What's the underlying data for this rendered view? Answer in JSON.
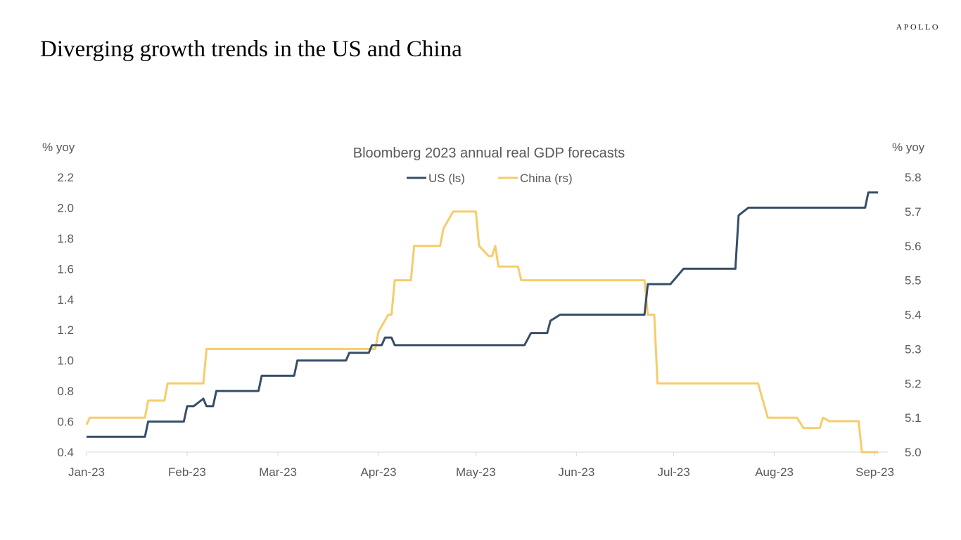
{
  "brand": "APOLLO",
  "page_title": "Diverging growth trends in the US and China",
  "colors": {
    "us": "#374e67",
    "china": "#f6cc6c",
    "axis": "#d9d9d9",
    "text": "#595959"
  },
  "chart_data": {
    "type": "line",
    "title": "Bloomberg 2023 annual real GDP forecasts",
    "ylabel_left": "% yoy",
    "ylabel_right": "% yoy",
    "legend_position": "top-center",
    "grid": false,
    "x_range": [
      "2023-01-01",
      "2023-09-05"
    ],
    "x_ticks": [
      "2023-01-01",
      "2023-02-01",
      "2023-03-01",
      "2023-04-01",
      "2023-05-01",
      "2023-06-01",
      "2023-07-01",
      "2023-08-01",
      "2023-09-01"
    ],
    "x_tick_labels": [
      "Jan-23",
      "Feb-23",
      "Mar-23",
      "Apr-23",
      "May-23",
      "Jun-23",
      "Jul-23",
      "Aug-23",
      "Sep-23"
    ],
    "y_left": {
      "min": 0.4,
      "max": 2.2,
      "ticks": [
        "0.4",
        "0.6",
        "0.8",
        "1.0",
        "1.2",
        "1.4",
        "1.6",
        "1.8",
        "2.0",
        "2.2"
      ]
    },
    "y_right": {
      "min": 5.0,
      "max": 5.8,
      "ticks": [
        "5.0",
        "5.1",
        "5.2",
        "5.3",
        "5.4",
        "5.5",
        "5.6",
        "5.7",
        "5.8"
      ]
    },
    "series": [
      {
        "name": "US (ls)",
        "axis": "left",
        "points": [
          [
            "2023-01-01",
            0.5
          ],
          [
            "2023-01-19",
            0.5
          ],
          [
            "2023-01-20",
            0.6
          ],
          [
            "2023-01-31",
            0.6
          ],
          [
            "2023-02-01",
            0.7
          ],
          [
            "2023-02-03",
            0.7
          ],
          [
            "2023-02-06",
            0.75
          ],
          [
            "2023-02-07",
            0.7
          ],
          [
            "2023-02-09",
            0.7
          ],
          [
            "2023-02-10",
            0.8
          ],
          [
            "2023-02-23",
            0.8
          ],
          [
            "2023-02-24",
            0.9
          ],
          [
            "2023-03-06",
            0.9
          ],
          [
            "2023-03-07",
            1.0
          ],
          [
            "2023-03-22",
            1.0
          ],
          [
            "2023-03-23",
            1.05
          ],
          [
            "2023-03-29",
            1.05
          ],
          [
            "2023-03-30",
            1.1
          ],
          [
            "2023-04-02",
            1.1
          ],
          [
            "2023-04-03",
            1.15
          ],
          [
            "2023-04-05",
            1.15
          ],
          [
            "2023-04-06",
            1.1
          ],
          [
            "2023-05-16",
            1.1
          ],
          [
            "2023-05-18",
            1.18
          ],
          [
            "2023-05-23",
            1.18
          ],
          [
            "2023-05-24",
            1.26
          ],
          [
            "2023-05-27",
            1.3
          ],
          [
            "2023-06-22",
            1.3
          ],
          [
            "2023-06-23",
            1.5
          ],
          [
            "2023-06-30",
            1.5
          ],
          [
            "2023-07-04",
            1.6
          ],
          [
            "2023-07-20",
            1.6
          ],
          [
            "2023-07-21",
            1.95
          ],
          [
            "2023-07-24",
            2.0
          ],
          [
            "2023-08-29",
            2.0
          ],
          [
            "2023-08-30",
            2.1
          ],
          [
            "2023-09-02",
            2.1
          ]
        ]
      },
      {
        "name": "China (rs)",
        "axis": "right",
        "points": [
          [
            "2023-01-01",
            5.08
          ],
          [
            "2023-01-02",
            5.1
          ],
          [
            "2023-01-19",
            5.1
          ],
          [
            "2023-01-20",
            5.15
          ],
          [
            "2023-01-25",
            5.15
          ],
          [
            "2023-01-26",
            5.2
          ],
          [
            "2023-02-06",
            5.2
          ],
          [
            "2023-02-07",
            5.3
          ],
          [
            "2023-03-31",
            5.3
          ],
          [
            "2023-04-01",
            5.35
          ],
          [
            "2023-04-04",
            5.4
          ],
          [
            "2023-04-05",
            5.4
          ],
          [
            "2023-04-06",
            5.5
          ],
          [
            "2023-04-11",
            5.5
          ],
          [
            "2023-04-12",
            5.6
          ],
          [
            "2023-04-20",
            5.6
          ],
          [
            "2023-04-21",
            5.65
          ],
          [
            "2023-04-24",
            5.7
          ],
          [
            "2023-05-01",
            5.7
          ],
          [
            "2023-05-02",
            5.6
          ],
          [
            "2023-05-04",
            5.58
          ],
          [
            "2023-05-05",
            5.57
          ],
          [
            "2023-05-06",
            5.57
          ],
          [
            "2023-05-07",
            5.6
          ],
          [
            "2023-05-08",
            5.54
          ],
          [
            "2023-05-14",
            5.54
          ],
          [
            "2023-05-15",
            5.5
          ],
          [
            "2023-06-22",
            5.5
          ],
          [
            "2023-06-23",
            5.4
          ],
          [
            "2023-06-25",
            5.4
          ],
          [
            "2023-06-26",
            5.2
          ],
          [
            "2023-07-27",
            5.2
          ],
          [
            "2023-07-30",
            5.1
          ],
          [
            "2023-08-08",
            5.1
          ],
          [
            "2023-08-10",
            5.07
          ],
          [
            "2023-08-15",
            5.07
          ],
          [
            "2023-08-16",
            5.1
          ],
          [
            "2023-08-18",
            5.09
          ],
          [
            "2023-08-27",
            5.09
          ],
          [
            "2023-08-28",
            5.0
          ],
          [
            "2023-09-02",
            5.0
          ]
        ]
      }
    ]
  }
}
